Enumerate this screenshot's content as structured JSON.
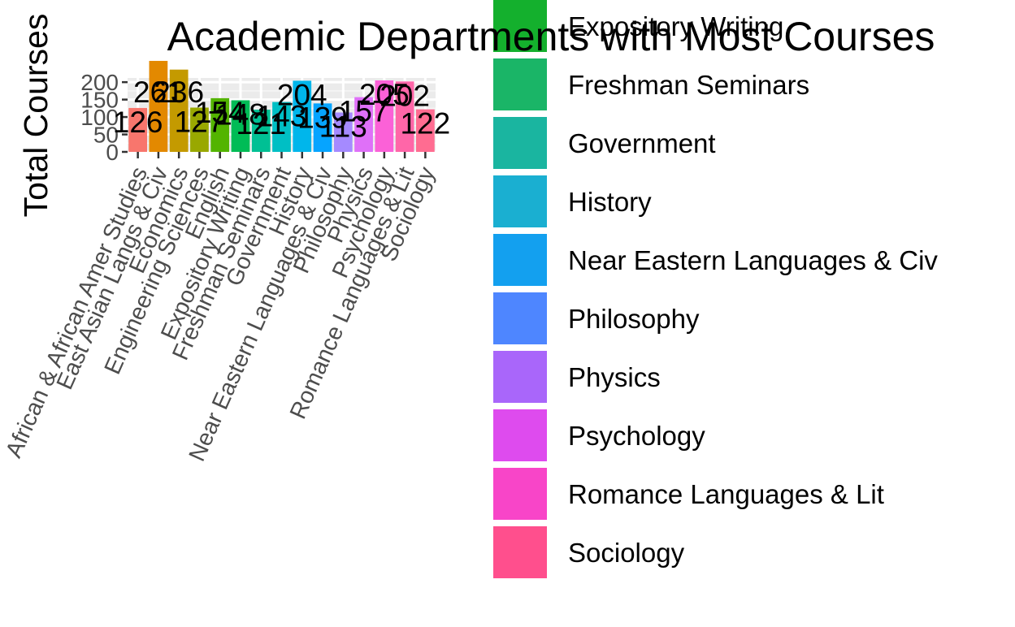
{
  "chart_data": {
    "type": "bar",
    "title": "Academic Departments with Most Courses",
    "xlabel": "",
    "ylabel": "Total Courses",
    "ylim": [
      0,
      212
    ],
    "yticks": [
      0,
      50,
      100,
      150,
      200
    ],
    "grid": true,
    "legend_position": "right",
    "categories": [
      "African & African Amer Studies",
      "East Asian Langs & Civ",
      "Economics",
      "Engineering Sciences",
      "English",
      "Expository Writing",
      "Freshman Seminars",
      "Government",
      "History",
      "Near Eastern Languages & Civ",
      "Philosophy",
      "Physics",
      "Psychology",
      "Romance Languages & Lit",
      "Sociology"
    ],
    "values": [
      126,
      261,
      236,
      127,
      154,
      148,
      121,
      143,
      204,
      139,
      113,
      157,
      205,
      202,
      122
    ],
    "data_labels": [
      "126",
      "261",
      "236",
      "127",
      "154",
      "148",
      "121",
      "143",
      "204",
      "139",
      "113",
      "157",
      "205",
      "202",
      "122"
    ],
    "colors": [
      "#F8766D",
      "#E38900",
      "#C49A00",
      "#99A800",
      "#53B400",
      "#00BC56",
      "#00C094",
      "#00BFC4",
      "#00B6EB",
      "#06A4FF",
      "#A58AFF",
      "#DF70F8",
      "#FB61D7",
      "#FF66A8",
      "#FF6C91"
    ],
    "legend_items": [
      "Expository Writing",
      "Freshman Seminars",
      "Government",
      "History",
      "Near Eastern Languages & Civ",
      "Philosophy",
      "Physics",
      "Psychology",
      "Romance Languages & Lit",
      "Sociology"
    ],
    "legend_colors": [
      "#14B02D",
      "#1AB567",
      "#1AB5A0",
      "#1AAFD1",
      "#13A0EF",
      "#4E86FF",
      "#A966FA",
      "#DE4BEE",
      "#F845C8",
      "#FF4F8D"
    ]
  }
}
